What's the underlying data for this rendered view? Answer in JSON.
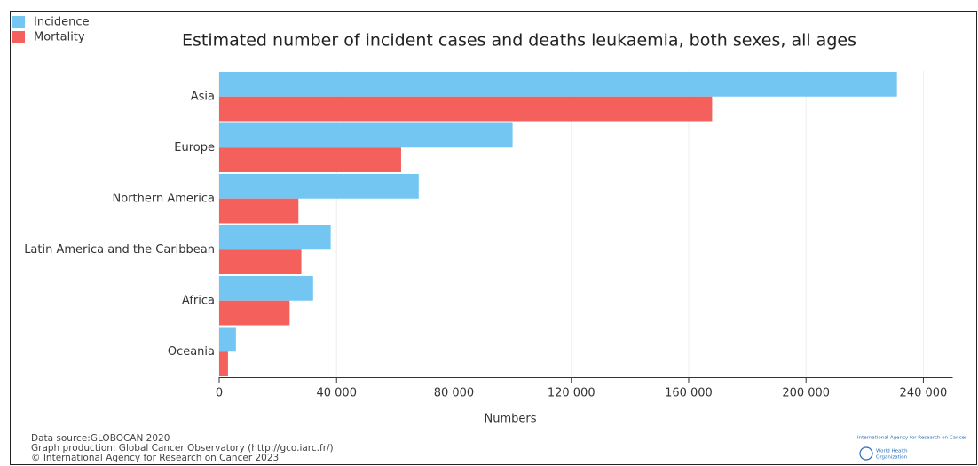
{
  "chart_data": {
    "type": "hbar",
    "title": "Estimated number of incident cases and deaths leukaemia, both sexes, all ages",
    "categories": [
      "Asia",
      "Europe",
      "Northern America",
      "Latin America and the Caribbean",
      "Africa",
      "Oceania"
    ],
    "series": [
      {
        "name": "Incidence",
        "color": "#73c6f2",
        "values": [
          231000,
          100000,
          68000,
          38000,
          32000,
          5700
        ]
      },
      {
        "name": "Mortality",
        "color": "#f4605c",
        "values": [
          168000,
          62000,
          27000,
          28000,
          24000,
          3000
        ]
      }
    ],
    "xlabel": "Numbers",
    "xlim": [
      0,
      250000
    ],
    "xticks": [
      0,
      {
        "value": 40000,
        "label": "40 000"
      },
      {
        "value": 80000,
        "label": "80 000"
      },
      {
        "value": 120000,
        "label": "120 000"
      },
      {
        "value": 160000,
        "label": "160 000"
      },
      {
        "value": 200000,
        "label": "200 000"
      },
      {
        "value": 240000,
        "label": "240 000"
      }
    ],
    "grid": true,
    "legend": "top-left",
    "footnotes": [
      "Data source:GLOBOCAN 2020",
      "Graph production: Global Cancer Observatory (http://gco.iarc.fr/)",
      "© International Agency for Research on Cancer 2023"
    ],
    "logo": [
      "International Agency for Research on Cancer",
      "World Health",
      "Organization"
    ]
  }
}
